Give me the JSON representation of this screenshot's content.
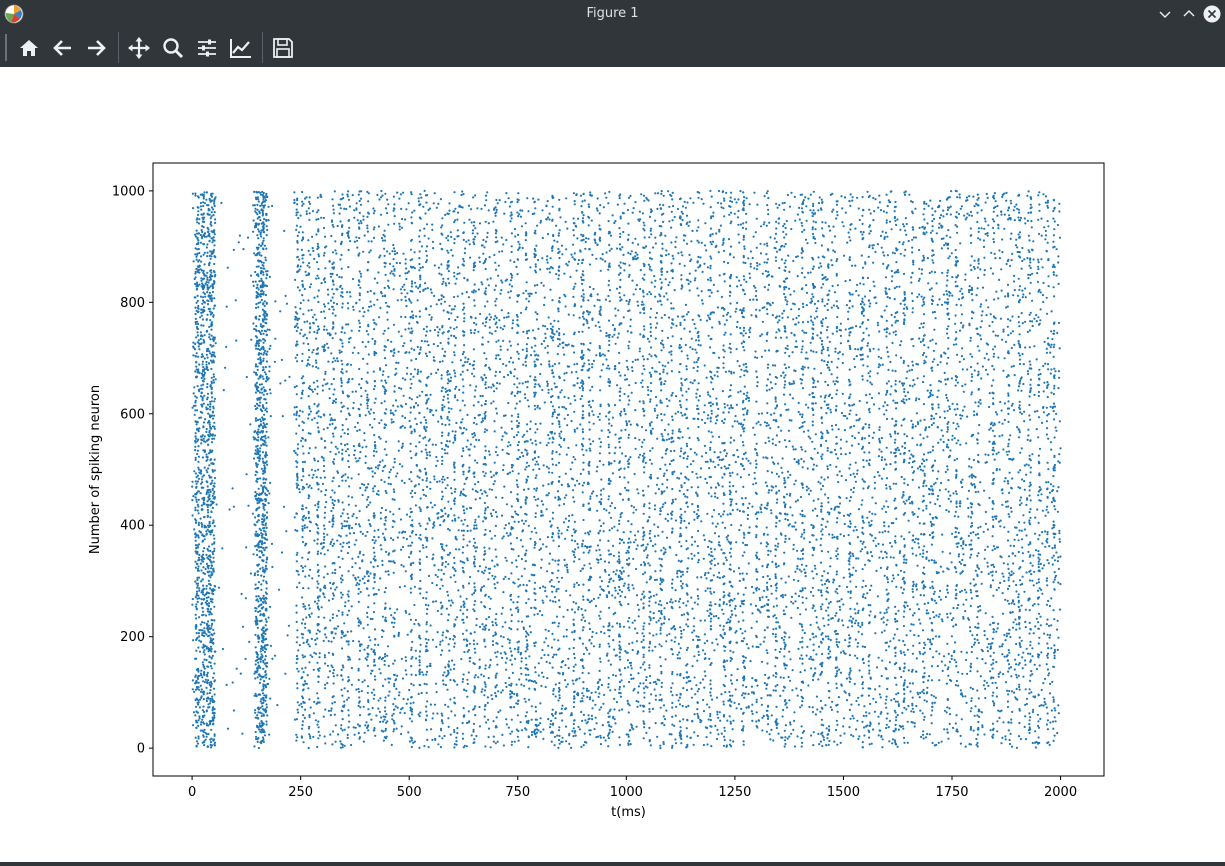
{
  "window": {
    "title": "Figure 1"
  },
  "toolbar": {
    "tools": [
      {
        "name": "home-icon",
        "tooltip": "Reset original view"
      },
      {
        "name": "back-arrow-icon",
        "tooltip": "Back to previous view"
      },
      {
        "name": "forward-arrow-icon",
        "tooltip": "Forward to next view"
      },
      {
        "name": "pan-move-icon",
        "tooltip": "Pan axes"
      },
      {
        "name": "zoom-magnifier-icon",
        "tooltip": "Zoom to rectangle"
      },
      {
        "name": "subplots-sliders-icon",
        "tooltip": "Configure subplots"
      },
      {
        "name": "edit-axis-icon",
        "tooltip": "Edit axis, curve and image parameters"
      },
      {
        "name": "save-floppy-icon",
        "tooltip": "Save the figure"
      }
    ]
  },
  "colors": {
    "marker": "#1f77b4",
    "chrome": "#31363b",
    "axis": "#000000"
  },
  "chart_data": {
    "type": "scatter",
    "title": "",
    "xlabel": "t(ms)",
    "ylabel": "Number of spiking neuron",
    "xlim": [
      -90,
      2100
    ],
    "ylim": [
      -50,
      1050
    ],
    "xticks": [
      0,
      250,
      500,
      750,
      1000,
      1250,
      1500,
      1750,
      2000
    ],
    "yticks": [
      0,
      200,
      400,
      600,
      800,
      1000
    ],
    "grid": false,
    "legend": "none",
    "neuron_range": [
      0,
      1000
    ],
    "time_range": [
      0,
      2000
    ],
    "series": [
      {
        "marker": "dot",
        "burst_times_ms": [
          12,
          25,
          38,
          48,
          150,
          160,
          168,
          242,
          255,
          270,
          290,
          305,
          325,
          345,
          360,
          385,
          405,
          420,
          445,
          465,
          505,
          525,
          540,
          575,
          590,
          605,
          625,
          650,
          675,
          700,
          735,
          750,
          770,
          790,
          830,
          845,
          880,
          900,
          915,
          940,
          960,
          985,
          1005,
          1040,
          1055,
          1080,
          1105,
          1125,
          1140,
          1165,
          1195,
          1225,
          1240,
          1270,
          1300,
          1325,
          1345,
          1365,
          1405,
          1430,
          1450,
          1465,
          1485,
          1515,
          1545,
          1560,
          1600,
          1620,
          1640,
          1660,
          1685,
          1705,
          1740,
          1760,
          1795,
          1810,
          1845,
          1880,
          1905,
          1930,
          1950,
          1970,
          1985
        ]
      }
    ]
  }
}
